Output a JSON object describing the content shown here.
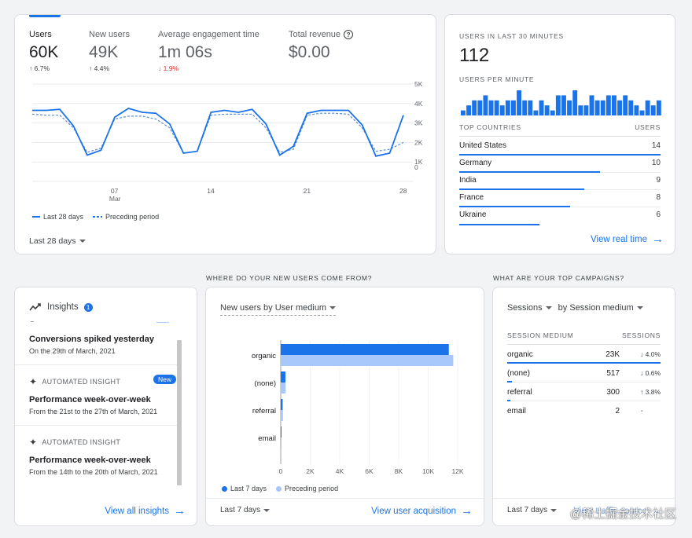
{
  "metrics": [
    {
      "label": "Users",
      "value": "60K",
      "change": "6.7%",
      "dir": "up"
    },
    {
      "label": "New users",
      "value": "49K",
      "change": "4.4%",
      "dir": "up"
    },
    {
      "label": "Average engagement time",
      "value": "1m 06s",
      "change": "1.9%",
      "dir": "down"
    },
    {
      "label": "Total revenue",
      "value": "$0.00",
      "change": "",
      "dir": "none"
    }
  ],
  "chart_data": [
    {
      "type": "line",
      "x": [
        1,
        2,
        3,
        4,
        5,
        6,
        7,
        8,
        9,
        10,
        11,
        12,
        13,
        14,
        15,
        16,
        17,
        18,
        19,
        20,
        21,
        22,
        23,
        24,
        25,
        26,
        27,
        28
      ],
      "x_tick_labels": [
        "07",
        "14",
        "21",
        "28"
      ],
      "x_tick_sublabel": "Mar",
      "ylim": [
        0,
        5000
      ],
      "y_tick_labels": [
        "5K",
        "4K",
        "3K",
        "2K",
        "1K",
        "0"
      ],
      "series": [
        {
          "name": "Last 28 days",
          "style": "solid",
          "values": [
            3650,
            3650,
            3700,
            2850,
            1350,
            1600,
            3300,
            3750,
            3550,
            3500,
            2950,
            1450,
            1550,
            3550,
            3650,
            3550,
            3700,
            2950,
            1350,
            1800,
            3500,
            3650,
            3650,
            3650,
            2900,
            1300,
            1450,
            3400
          ]
        },
        {
          "name": "Preceding period",
          "style": "dashed",
          "values": [
            3450,
            3400,
            3400,
            2750,
            1500,
            1700,
            3200,
            3350,
            3350,
            3200,
            2750,
            1450,
            1550,
            3400,
            3450,
            3450,
            3450,
            2750,
            1500,
            1650,
            3400,
            3500,
            3500,
            3450,
            2750,
            1550,
            1650,
            2000
          ]
        }
      ],
      "legend": [
        "Last 28 days",
        "Preceding period"
      ]
    },
    {
      "type": "bar",
      "title": "Users per minute",
      "values": [
        1,
        2,
        3,
        3,
        4,
        3,
        3,
        2,
        3,
        3,
        5,
        3,
        3,
        1,
        3,
        2,
        1,
        4,
        4,
        3,
        5,
        2,
        2,
        4,
        3,
        3,
        4,
        4,
        3,
        4,
        3,
        2,
        1,
        3,
        2,
        3
      ]
    },
    {
      "type": "bar",
      "orientation": "horizontal",
      "title": "New users by User medium",
      "categories": [
        "organic",
        "(none)",
        "referral",
        "email"
      ],
      "series": [
        {
          "name": "Last 7 days",
          "values": [
            11400,
            320,
            130,
            25
          ]
        },
        {
          "name": "Preceding period",
          "values": [
            11700,
            330,
            150,
            40
          ]
        }
      ],
      "xlim": [
        0,
        12000
      ],
      "x_tick_labels": [
        "0",
        "2K",
        "4K",
        "6K",
        "8K",
        "10K",
        "12K"
      ]
    }
  ],
  "overview": {
    "range_label": "Last 28 days"
  },
  "realtime": {
    "title": "USERS IN LAST 30 MINUTES",
    "count": "112",
    "per_minute_label": "USERS PER MINUTE",
    "countries_header": "TOP COUNTRIES",
    "users_header": "USERS",
    "countries": [
      {
        "name": "United States",
        "users": "14",
        "share": 1.0
      },
      {
        "name": "Germany",
        "users": "10",
        "share": 0.7
      },
      {
        "name": "India",
        "users": "9",
        "share": 0.62
      },
      {
        "name": "France",
        "users": "8",
        "share": 0.55
      },
      {
        "name": "Ukraine",
        "users": "6",
        "share": 0.4
      }
    ],
    "link": "View real time"
  },
  "sections": {
    "new_users_q": "WHERE DO YOUR NEW USERS COME FROM?",
    "campaigns_q": "WHAT ARE YOUR TOP CAMPAIGNS?"
  },
  "insights": {
    "title": "Insights",
    "badge_count": "1",
    "items": [
      {
        "title": "Conversions spiked yesterday",
        "subtitle": "On the 29th of March, 2021"
      },
      {
        "kind": "AUTOMATED INSIGHT",
        "badge": "New",
        "title": "Performance week-over-week",
        "subtitle": "From the 21st to the 27th of March, 2021"
      },
      {
        "kind": "AUTOMATED INSIGHT",
        "title": "Performance week-over-week",
        "subtitle": "From the 14th to the 20th of March, 2021"
      }
    ],
    "link": "View all insights"
  },
  "acquisition": {
    "dropdown": "New users by User medium",
    "legend": [
      "Last 7 days",
      "Preceding period"
    ],
    "range_label": "Last 7 days",
    "link": "View user acquisition",
    "colors": {
      "current": "#1a73e8",
      "previous": "#a8c7fa"
    }
  },
  "campaigns": {
    "dropdown1": "Sessions",
    "dropdown2": "by Session medium",
    "col1": "SESSION MEDIUM",
    "col2": "SESSIONS",
    "rows": [
      {
        "medium": "organic",
        "sessions": "23K",
        "change": "4.0%",
        "dir": "down",
        "share": 1.0
      },
      {
        "medium": "(none)",
        "sessions": "517",
        "change": "0.6%",
        "dir": "down",
        "share": 0.03
      },
      {
        "medium": "referral",
        "sessions": "300",
        "change": "3.8%",
        "dir": "up",
        "share": 0.02
      },
      {
        "medium": "email",
        "sessions": "2",
        "change": "-",
        "dir": "none",
        "share": 0
      }
    ],
    "range_label": "Last 7 days",
    "link": "View traffic source"
  },
  "watermark": "@稀土掘金技术社区"
}
